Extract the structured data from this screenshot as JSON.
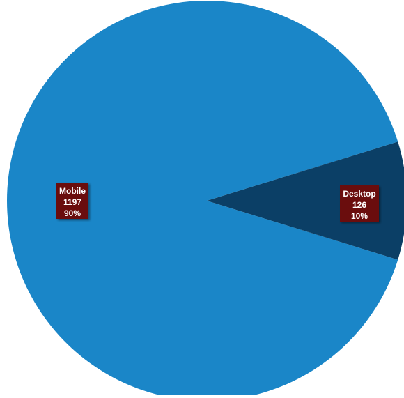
{
  "chart_data": {
    "type": "pie",
    "slices": [
      {
        "name": "Mobile",
        "value": 1197,
        "percent": "90%",
        "color": "#1a86c8"
      },
      {
        "name": "Desktop",
        "value": 126,
        "percent": "10%",
        "color": "#0b3f66"
      }
    ],
    "label_color": "#6b0d0d",
    "label_text_color": "#ffffff"
  }
}
